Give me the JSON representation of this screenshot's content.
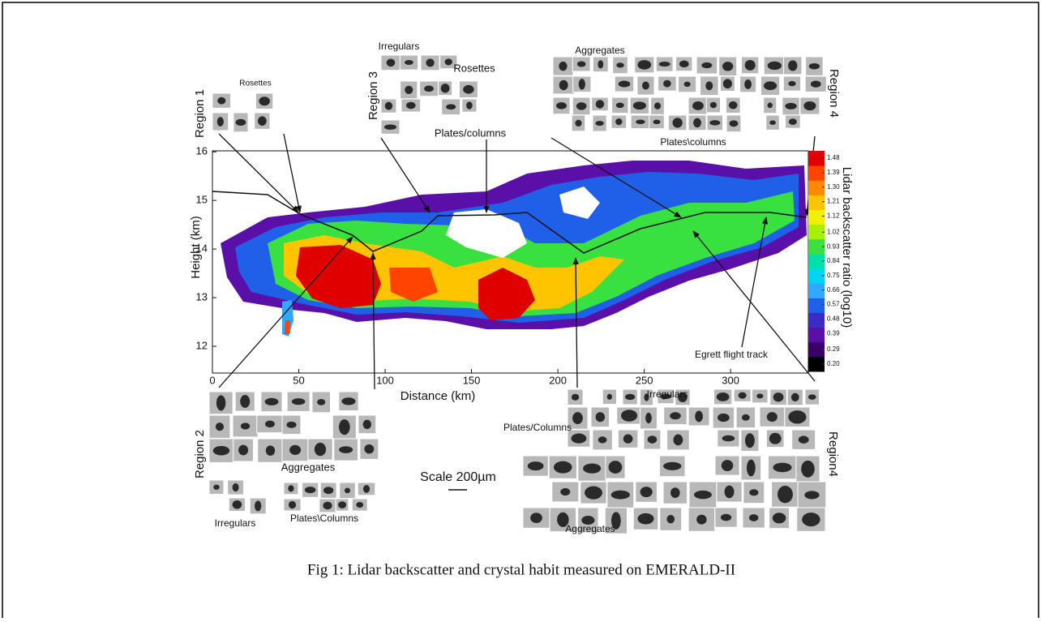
{
  "chart_data": {
    "type": "heatmap",
    "xlabel": "Distance (km)",
    "ylabel": "Height (km)",
    "xlim": [
      0,
      345
    ],
    "ylim": [
      11.45,
      16.02
    ],
    "xticks": [
      0,
      50,
      100,
      150,
      200,
      250,
      300
    ],
    "yticks": [
      12,
      13,
      14,
      15,
      16
    ],
    "colorbar": {
      "label": "Lidar backscatter ratio (log10)",
      "ticks": [
        {
          "value": 0.2,
          "label": "0.20"
        },
        0.29,
        0.39,
        0.48,
        0.57,
        0.66,
        0.75,
        0.84,
        0.93,
        {
          "value": 1.02,
          "label": "1.02"
        },
        1.12,
        1.21,
        {
          "value": 1.3,
          "label": "1.30"
        },
        1.39,
        1.48
      ],
      "colors": [
        "#000000",
        "#3a0068",
        "#5a10a8",
        "#3a2cc8",
        "#2060e8",
        "#30a8ff",
        "#00d4f0",
        "#00e0a8",
        "#38e040",
        "#a8f000",
        "#f0f000",
        "#ffc400",
        "#ff8800",
        "#ff4400",
        "#e00000"
      ]
    },
    "annotations": [
      "Region 1",
      "Rosettes",
      "Irregulars",
      "Rosettes",
      "Region 3",
      "Plates/columns",
      "Aggregates",
      "Region 4",
      "Plates\\columns",
      "Region 2",
      "Aggregates",
      "Irregulars",
      "Plates\\Columns",
      "Scale 200µm",
      "Irregulars",
      "Plates/Columns",
      "Region4",
      "Aggregates",
      "Egrett flight track"
    ]
  },
  "caption": "Fig 1: Lidar backscatter and crystal habit measured on EMERALD-II"
}
